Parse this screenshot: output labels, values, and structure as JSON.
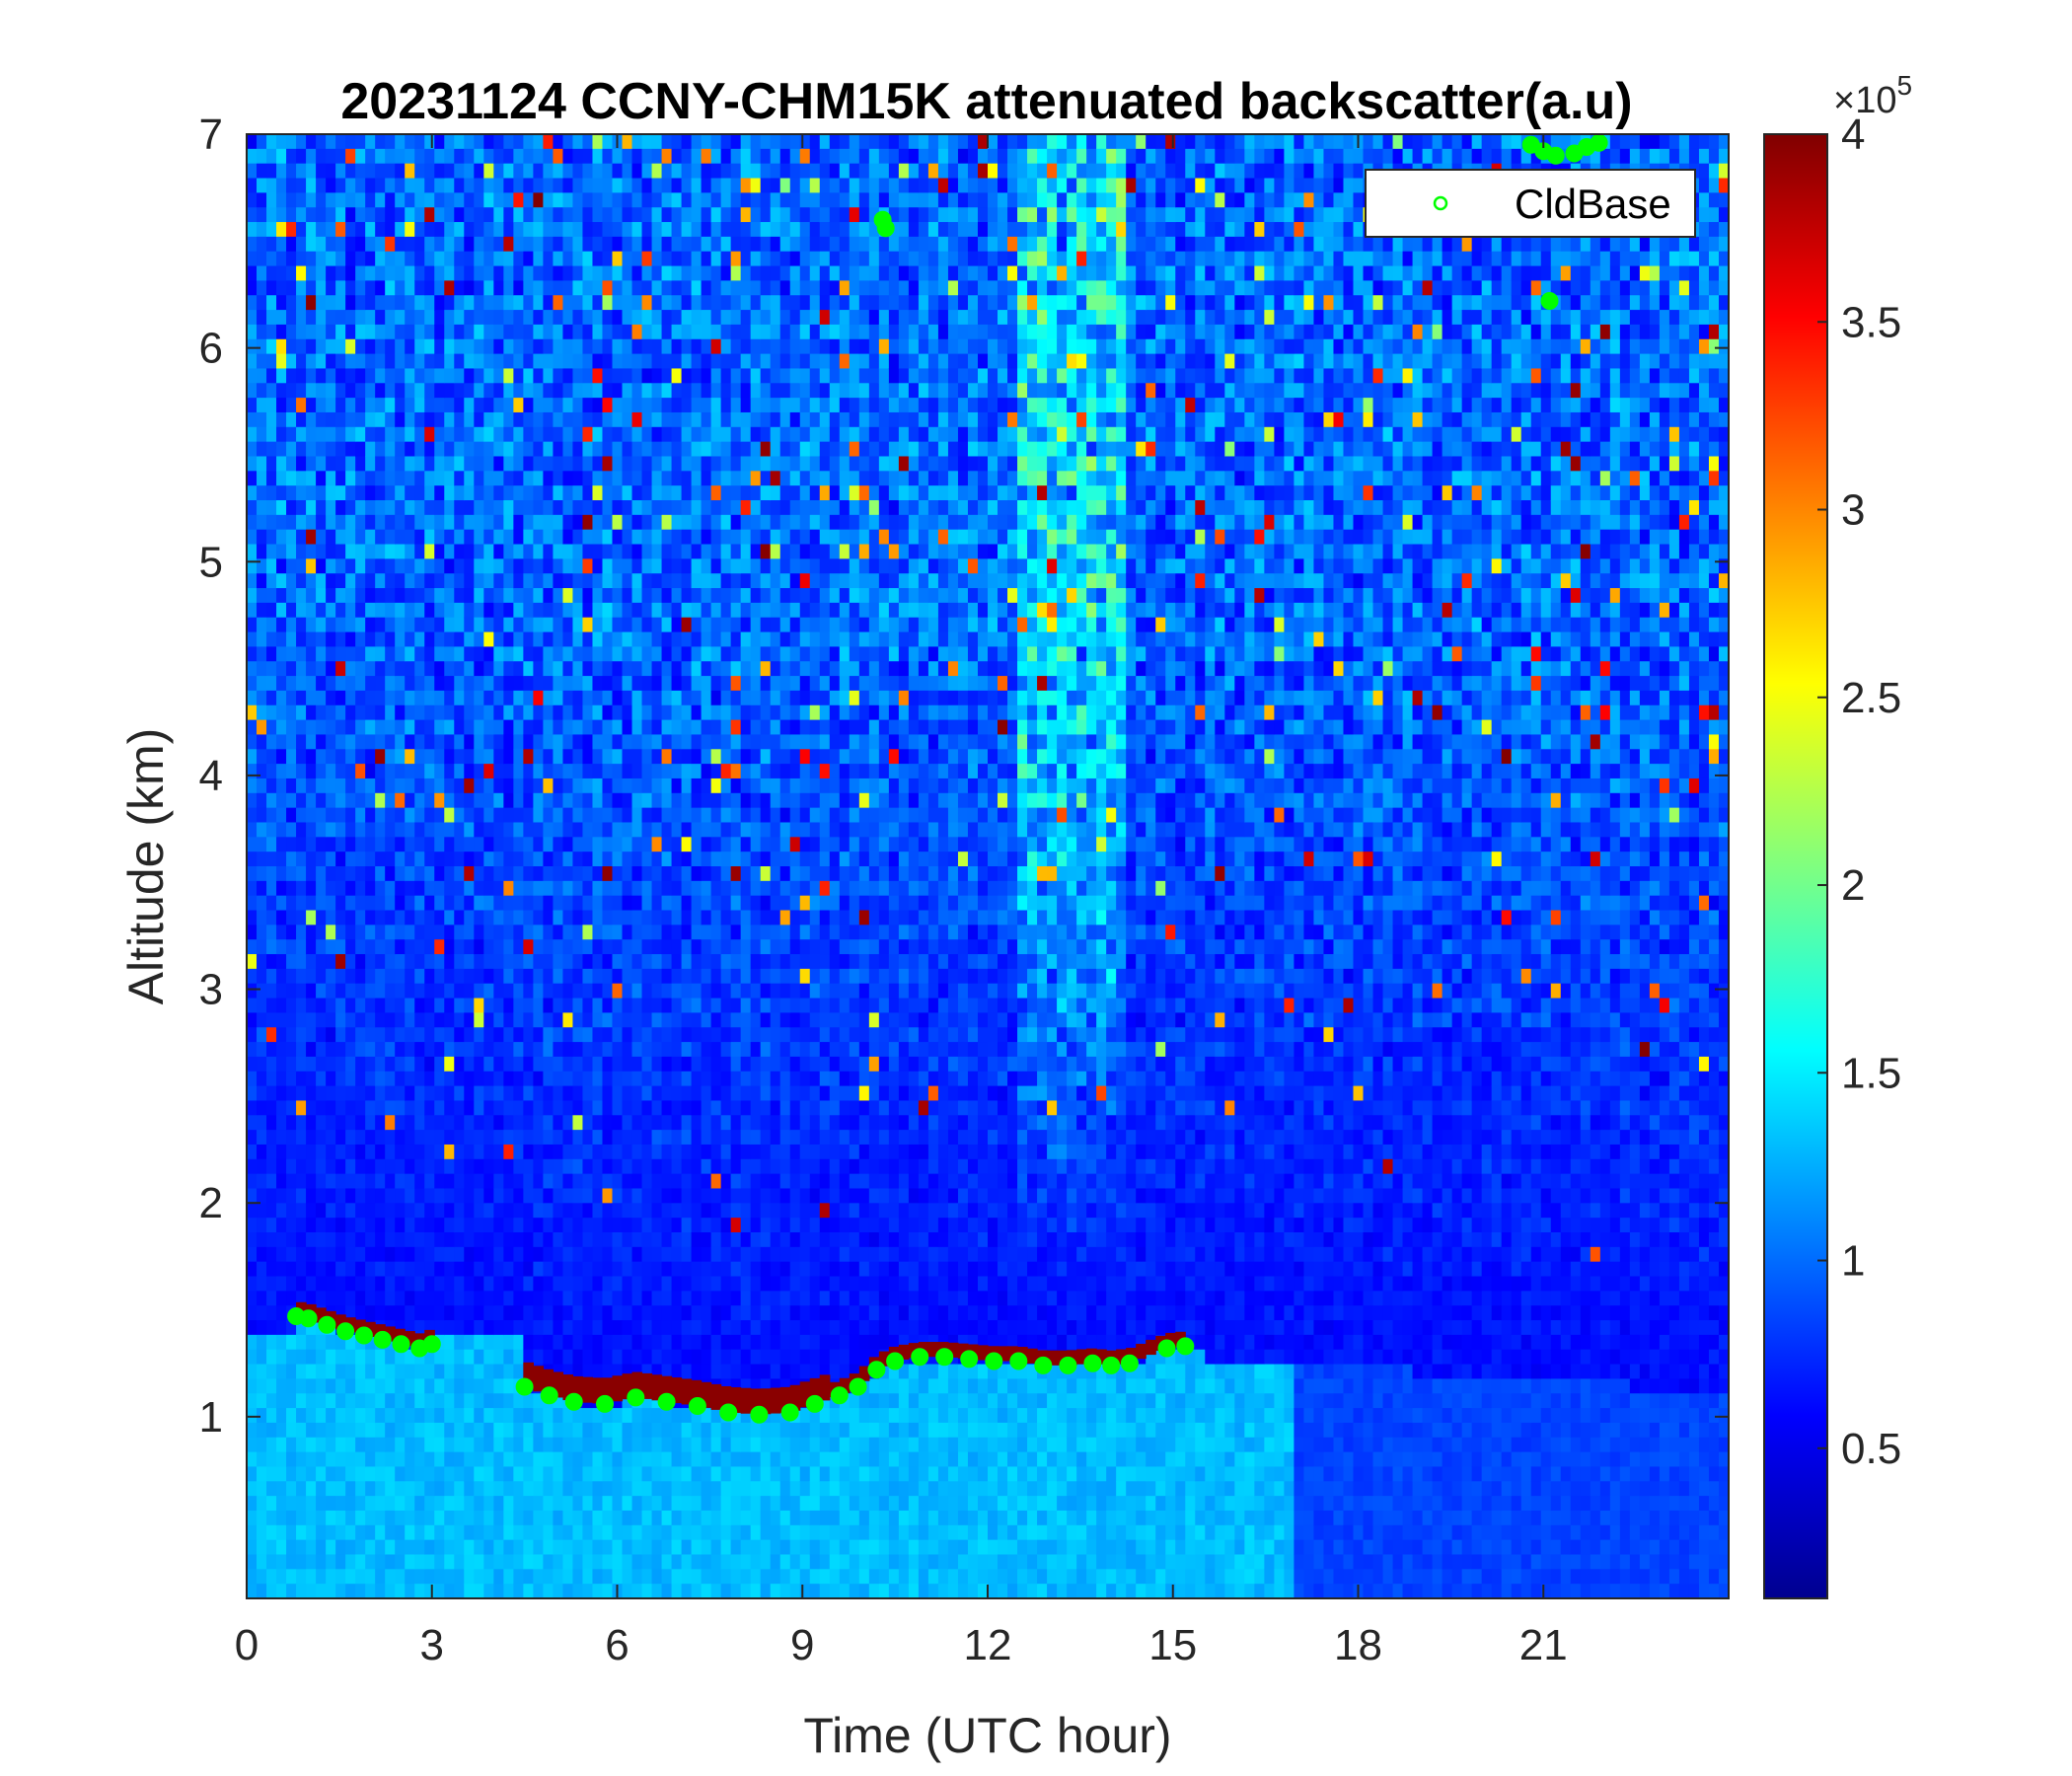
{
  "chart_data": {
    "type": "heatmap",
    "title": "20231124 CCNY-CHM15K attenuated backscatter(a.u)",
    "xlabel": "Time (UTC hour)",
    "ylabel": "Altitude (km)",
    "xlim": [
      0,
      24
    ],
    "ylim": [
      0.15,
      7
    ],
    "x_ticks": [
      0,
      3,
      6,
      9,
      12,
      15,
      18,
      21
    ],
    "y_ticks": [
      1,
      2,
      3,
      4,
      5,
      6,
      7
    ],
    "colorbar": {
      "colormap": "jet",
      "range": [
        0.1,
        4
      ],
      "ticks": [
        0.5,
        1,
        1.5,
        2,
        2.5,
        3,
        3.5,
        4
      ],
      "exponent_label": "×10",
      "exponent": "5"
    },
    "legend": {
      "entries": [
        "CldBase"
      ],
      "placement": "top-right"
    },
    "series": [
      {
        "name": "CldBase",
        "marker": "circle",
        "color": "#00ff00",
        "x": [
          0.8,
          1.0,
          1.3,
          1.6,
          1.9,
          2.2,
          2.5,
          2.8,
          3.0,
          4.5,
          4.9,
          5.3,
          5.8,
          6.3,
          6.8,
          7.3,
          7.8,
          8.3,
          8.8,
          9.2,
          9.6,
          9.9,
          10.2,
          10.5,
          10.9,
          11.3,
          11.7,
          12.1,
          12.5,
          12.9,
          13.3,
          13.7,
          14.0,
          14.3,
          14.9,
          15.2,
          10.3,
          10.35,
          20.8,
          21.0,
          21.2,
          21.5,
          21.7,
          21.9,
          21.1
        ],
        "y": [
          1.47,
          1.46,
          1.43,
          1.4,
          1.38,
          1.36,
          1.34,
          1.32,
          1.34,
          1.14,
          1.1,
          1.07,
          1.06,
          1.09,
          1.07,
          1.05,
          1.02,
          1.01,
          1.02,
          1.06,
          1.1,
          1.14,
          1.22,
          1.26,
          1.28,
          1.28,
          1.27,
          1.26,
          1.26,
          1.24,
          1.24,
          1.25,
          1.24,
          1.25,
          1.32,
          1.33,
          6.6,
          6.56,
          6.95,
          6.92,
          6.9,
          6.91,
          6.94,
          6.96,
          6.22
        ]
      }
    ]
  }
}
